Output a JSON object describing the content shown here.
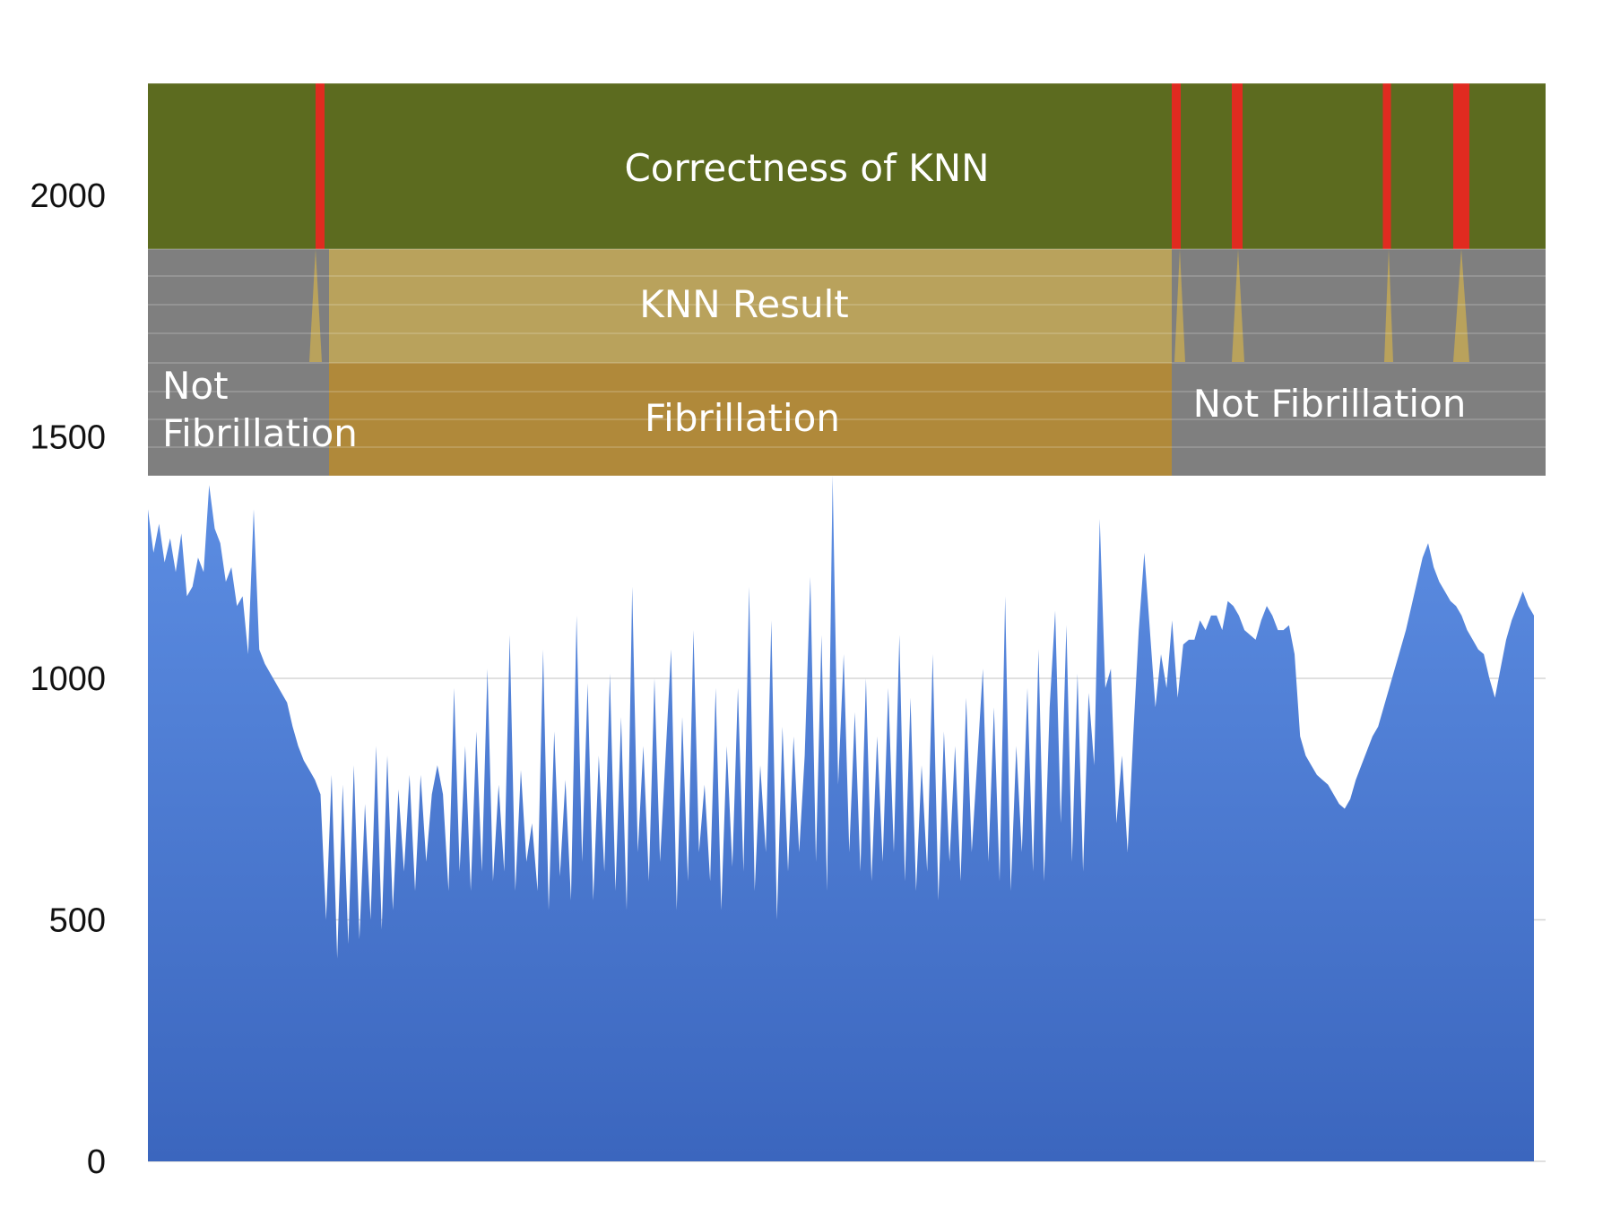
{
  "chart_data": {
    "type": "area",
    "title": "",
    "xlabel": "",
    "ylabel": "",
    "ylim": [
      0,
      2000
    ],
    "yticks": [
      0,
      500,
      1000,
      1500,
      2000
    ],
    "grid": true,
    "series": [
      {
        "values": [
          1350,
          1260,
          1320,
          1240,
          1290,
          1220,
          1300,
          1170,
          1190,
          1250,
          1220,
          1400,
          1310,
          1280,
          1200,
          1230,
          1150,
          1170,
          1050,
          1350,
          1060,
          1030,
          1010,
          990,
          970,
          950,
          900,
          860,
          830,
          810,
          790,
          760,
          500,
          800,
          420,
          780,
          450,
          820,
          460,
          740,
          500,
          860,
          480,
          840,
          520,
          770,
          600,
          800,
          560,
          800,
          620,
          760,
          820,
          760,
          560,
          980,
          600,
          860,
          560,
          890,
          600,
          1020,
          580,
          780,
          600,
          1090,
          560,
          810,
          620,
          700,
          560,
          1060,
          520,
          890,
          590,
          790,
          540,
          1130,
          620,
          990,
          540,
          840,
          600,
          1010,
          560,
          920,
          520,
          1190,
          640,
          860,
          580,
          1000,
          620,
          840,
          1060,
          520,
          920,
          580,
          1100,
          640,
          780,
          580,
          980,
          520,
          860,
          610,
          980,
          600,
          1190,
          560,
          820,
          640,
          1120,
          500,
          900,
          600,
          880,
          640,
          840,
          1210,
          620,
          1090,
          560,
          1420,
          780,
          1050,
          640,
          930,
          600,
          1000,
          580,
          880,
          620,
          980,
          640,
          1090,
          580,
          960,
          560,
          820,
          600,
          1050,
          540,
          890,
          620,
          860,
          580,
          960,
          640,
          830,
          1020,
          620,
          940,
          580,
          1170,
          560,
          860,
          640,
          980,
          600,
          1060,
          580,
          940,
          1140,
          700,
          1110,
          620,
          1010,
          600,
          970,
          820,
          1330,
          980,
          1020,
          700,
          840,
          640,
          880,
          1100,
          1260,
          1100,
          940,
          1050,
          980,
          1120,
          960,
          1070,
          1080,
          1080,
          1120,
          1100,
          1130,
          1130,
          1100,
          1160,
          1150,
          1130,
          1100,
          1090,
          1080,
          1120,
          1150,
          1130,
          1100,
          1100,
          1110,
          1050,
          880,
          840,
          820,
          800,
          790,
          780,
          760,
          740,
          730,
          750,
          790,
          820,
          850,
          880,
          900,
          940,
          980,
          1020,
          1060,
          1100,
          1150,
          1200,
          1250,
          1280,
          1230,
          1200,
          1180,
          1160,
          1150,
          1130,
          1100,
          1080,
          1060,
          1050,
          1000,
          960,
          1020,
          1080,
          1120,
          1150,
          1180,
          1150,
          1130
        ]
      }
    ],
    "bands": [
      {
        "label": "Correctness of KNN",
        "color": "#5c6b1f"
      },
      {
        "label": "KNN Result",
        "color": "#b9a25c"
      },
      {
        "label": "Fibrillation",
        "color": "#b0893a"
      },
      {
        "label": "Not Fibrillation",
        "color": "#7f7f7f"
      },
      {
        "label": "Not Fibrillation",
        "color": "#7f7f7f"
      }
    ],
    "colors": {
      "area_top": "#5d8ee3",
      "area_bottom": "#3b66be",
      "error_marker": "#e02b20",
      "band_grey": "#7f7f7f"
    }
  }
}
